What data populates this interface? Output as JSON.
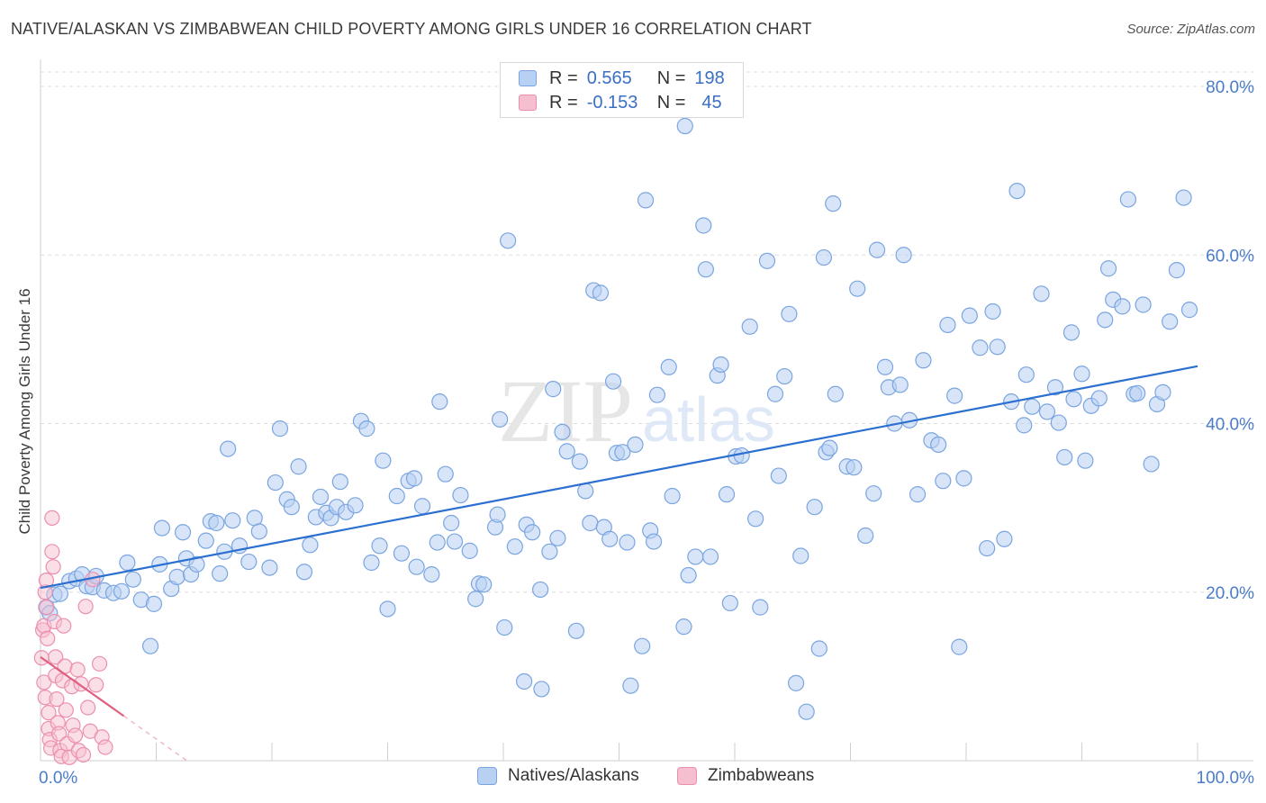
{
  "title": "NATIVE/ALASKAN VS ZIMBABWEAN CHILD POVERTY AMONG GIRLS UNDER 16 CORRELATION CHART",
  "source": "Source: ZipAtlas.com",
  "watermark": {
    "zip": "ZIP",
    "atlas": "atlas"
  },
  "legend_box": {
    "rows": [
      {
        "r_label": "R =",
        "r_value": "0.565",
        "n_label": "N =",
        "n_value": "198"
      },
      {
        "r_label": "R =",
        "r_value": "-0.153",
        "n_label": "N =",
        "n_value": "45"
      }
    ]
  },
  "bottom_legend": {
    "items": [
      "Natives/Alaskans",
      "Zimbabweans"
    ]
  },
  "colors": {
    "blue_fill": "#b8d0f2",
    "blue_stroke": "#7aa5e0",
    "blue_line": "#2b6fd0",
    "pink_fill": "#f6bfd0",
    "pink_stroke": "#ec8fae",
    "pink_line": "#e0607f",
    "tick_text": "#4a7cc9",
    "grid": "#dcdcdc"
  },
  "chart_data": {
    "type": "scatter",
    "xlabel": "",
    "ylabel": "Child Poverty Among Girls Under 16",
    "x_tick_labels": [
      "0.0%",
      "100.0%"
    ],
    "y_tick_labels": [
      "20.0%",
      "40.0%",
      "60.0%",
      "80.0%"
    ],
    "y_tick_values": [
      20,
      40,
      60,
      80
    ],
    "xlim": [
      0,
      100
    ],
    "ylim": [
      0,
      82
    ],
    "grid": true,
    "legend_placement": "top-center",
    "series": [
      {
        "name": "Natives/Alaskans",
        "trend": {
          "x": [
            0,
            100
          ],
          "y": [
            20.5,
            46.8
          ]
        },
        "points": [
          [
            0.5,
            18.2
          ],
          [
            0.8,
            17.5
          ],
          [
            1.2,
            19.7
          ],
          [
            1.7,
            19.8
          ],
          [
            2.5,
            21.3
          ],
          [
            3.1,
            21.6
          ],
          [
            3.6,
            22.1
          ],
          [
            4.0,
            20.7
          ],
          [
            4.5,
            20.6
          ],
          [
            4.8,
            21.9
          ],
          [
            5.5,
            20.2
          ],
          [
            6.3,
            19.9
          ],
          [
            7.0,
            20.1
          ],
          [
            7.5,
            23.5
          ],
          [
            8.0,
            21.5
          ],
          [
            8.7,
            19.1
          ],
          [
            9.5,
            13.6
          ],
          [
            9.8,
            18.6
          ],
          [
            10.3,
            23.3
          ],
          [
            10.5,
            27.6
          ],
          [
            11.3,
            20.4
          ],
          [
            11.8,
            21.8
          ],
          [
            12.3,
            27.1
          ],
          [
            12.6,
            24.0
          ],
          [
            13.0,
            22.1
          ],
          [
            13.5,
            23.3
          ],
          [
            14.3,
            26.1
          ],
          [
            14.7,
            28.4
          ],
          [
            15.2,
            28.2
          ],
          [
            15.5,
            22.2
          ],
          [
            15.9,
            24.8
          ],
          [
            16.2,
            37.0
          ],
          [
            16.6,
            28.5
          ],
          [
            17.2,
            25.5
          ],
          [
            18.0,
            23.6
          ],
          [
            18.5,
            28.8
          ],
          [
            18.9,
            27.2
          ],
          [
            19.8,
            22.9
          ],
          [
            20.3,
            33.0
          ],
          [
            20.7,
            39.4
          ],
          [
            21.3,
            31.0
          ],
          [
            21.7,
            30.1
          ],
          [
            22.3,
            34.9
          ],
          [
            22.8,
            22.4
          ],
          [
            23.3,
            25.6
          ],
          [
            23.8,
            28.9
          ],
          [
            24.2,
            31.3
          ],
          [
            24.7,
            29.4
          ],
          [
            25.1,
            28.8
          ],
          [
            25.6,
            30.1
          ],
          [
            25.9,
            33.1
          ],
          [
            26.4,
            29.5
          ],
          [
            27.2,
            30.3
          ],
          [
            27.7,
            40.3
          ],
          [
            28.2,
            39.4
          ],
          [
            28.6,
            23.5
          ],
          [
            29.3,
            25.5
          ],
          [
            29.6,
            35.6
          ],
          [
            30.0,
            18.0
          ],
          [
            30.8,
            31.4
          ],
          [
            31.2,
            24.6
          ],
          [
            31.8,
            33.2
          ],
          [
            32.3,
            33.5
          ],
          [
            32.5,
            23.0
          ],
          [
            33.0,
            30.2
          ],
          [
            33.8,
            22.1
          ],
          [
            34.3,
            25.9
          ],
          [
            34.5,
            42.6
          ],
          [
            35.0,
            34.0
          ],
          [
            35.5,
            28.2
          ],
          [
            35.8,
            26.0
          ],
          [
            36.3,
            31.5
          ],
          [
            37.1,
            24.9
          ],
          [
            37.6,
            19.2
          ],
          [
            37.9,
            21.0
          ],
          [
            38.3,
            20.9
          ],
          [
            39.3,
            27.7
          ],
          [
            39.5,
            29.2
          ],
          [
            39.7,
            40.5
          ],
          [
            40.1,
            15.8
          ],
          [
            41.0,
            25.4
          ],
          [
            41.8,
            9.4
          ],
          [
            42.0,
            28.0
          ],
          [
            42.5,
            27.1
          ],
          [
            43.2,
            20.3
          ],
          [
            43.3,
            8.5
          ],
          [
            44.0,
            24.8
          ],
          [
            44.3,
            44.1
          ],
          [
            44.7,
            26.4
          ],
          [
            45.1,
            39.0
          ],
          [
            45.5,
            36.7
          ],
          [
            46.3,
            15.4
          ],
          [
            46.6,
            35.5
          ],
          [
            47.1,
            32.0
          ],
          [
            47.5,
            28.2
          ],
          [
            47.8,
            55.8
          ],
          [
            48.4,
            55.5
          ],
          [
            48.7,
            27.7
          ],
          [
            49.2,
            26.3
          ],
          [
            49.5,
            45.0
          ],
          [
            49.8,
            36.5
          ],
          [
            50.3,
            36.6
          ],
          [
            50.7,
            25.9
          ],
          [
            51.0,
            8.9
          ],
          [
            51.4,
            37.5
          ],
          [
            52.0,
            13.6
          ],
          [
            52.3,
            66.5
          ],
          [
            52.7,
            27.3
          ],
          [
            53.0,
            26.0
          ],
          [
            53.3,
            43.4
          ],
          [
            54.3,
            46.7
          ],
          [
            54.6,
            31.4
          ],
          [
            55.6,
            15.9
          ],
          [
            56.0,
            22.0
          ],
          [
            56.6,
            24.2
          ],
          [
            57.3,
            63.5
          ],
          [
            57.5,
            58.3
          ],
          [
            57.9,
            24.2
          ],
          [
            58.5,
            45.7
          ],
          [
            58.8,
            47.0
          ],
          [
            59.3,
            31.6
          ],
          [
            59.6,
            18.7
          ],
          [
            60.1,
            36.1
          ],
          [
            60.6,
            36.2
          ],
          [
            61.3,
            51.5
          ],
          [
            61.8,
            28.7
          ],
          [
            62.2,
            18.2
          ],
          [
            62.8,
            59.3
          ],
          [
            63.5,
            43.5
          ],
          [
            63.8,
            33.8
          ],
          [
            64.3,
            45.6
          ],
          [
            64.7,
            53.0
          ],
          [
            65.3,
            9.2
          ],
          [
            65.7,
            24.3
          ],
          [
            66.2,
            5.8
          ],
          [
            66.9,
            30.1
          ],
          [
            67.3,
            13.3
          ],
          [
            67.7,
            59.7
          ],
          [
            67.9,
            36.6
          ],
          [
            68.2,
            37.1
          ],
          [
            68.5,
            66.1
          ],
          [
            68.7,
            43.5
          ],
          [
            69.7,
            34.9
          ],
          [
            70.3,
            34.8
          ],
          [
            70.6,
            56.0
          ],
          [
            71.3,
            26.7
          ],
          [
            72.0,
            31.7
          ],
          [
            72.3,
            60.6
          ],
          [
            73.0,
            46.7
          ],
          [
            73.3,
            44.3
          ],
          [
            73.8,
            40.0
          ],
          [
            74.3,
            44.6
          ],
          [
            74.6,
            60.0
          ],
          [
            75.1,
            40.4
          ],
          [
            75.8,
            31.6
          ],
          [
            76.3,
            47.5
          ],
          [
            77.0,
            38.0
          ],
          [
            77.6,
            37.5
          ],
          [
            78.0,
            33.2
          ],
          [
            78.4,
            51.7
          ],
          [
            79.0,
            43.3
          ],
          [
            79.4,
            13.5
          ],
          [
            79.8,
            33.5
          ],
          [
            80.3,
            52.8
          ],
          [
            81.2,
            49.0
          ],
          [
            81.8,
            25.2
          ],
          [
            82.3,
            53.3
          ],
          [
            82.7,
            49.1
          ],
          [
            83.3,
            26.3
          ],
          [
            83.9,
            42.6
          ],
          [
            84.4,
            67.6
          ],
          [
            85.0,
            39.8
          ],
          [
            85.2,
            45.8
          ],
          [
            85.7,
            42.0
          ],
          [
            86.5,
            55.4
          ],
          [
            87.0,
            41.4
          ],
          [
            87.7,
            44.3
          ],
          [
            88.0,
            40.1
          ],
          [
            88.5,
            36.0
          ],
          [
            89.1,
            50.8
          ],
          [
            89.3,
            42.9
          ],
          [
            90.0,
            45.9
          ],
          [
            90.3,
            35.6
          ],
          [
            90.8,
            42.1
          ],
          [
            91.5,
            43.0
          ],
          [
            92.0,
            52.3
          ],
          [
            92.3,
            58.4
          ],
          [
            92.7,
            54.7
          ],
          [
            93.5,
            53.9
          ],
          [
            94.0,
            66.6
          ],
          [
            94.5,
            43.5
          ],
          [
            94.8,
            43.6
          ],
          [
            95.3,
            54.1
          ],
          [
            96.0,
            35.2
          ],
          [
            96.5,
            42.3
          ],
          [
            97.0,
            43.7
          ],
          [
            97.6,
            52.1
          ],
          [
            98.2,
            58.2
          ],
          [
            98.8,
            66.8
          ],
          [
            99.3,
            53.5
          ],
          [
            55.7,
            75.3
          ],
          [
            40.4,
            61.7
          ]
        ]
      },
      {
        "name": "Zimbabweans",
        "trend": {
          "x": [
            0,
            7.2
          ],
          "y": [
            12.3,
            5.3
          ]
        },
        "points": [
          [
            0.1,
            12.2
          ],
          [
            0.2,
            15.5
          ],
          [
            0.3,
            16.0
          ],
          [
            0.3,
            9.3
          ],
          [
            0.4,
            7.5
          ],
          [
            0.4,
            20.0
          ],
          [
            0.5,
            21.4
          ],
          [
            0.5,
            18.2
          ],
          [
            0.6,
            14.5
          ],
          [
            0.7,
            5.7
          ],
          [
            0.7,
            3.8
          ],
          [
            0.8,
            2.5
          ],
          [
            0.9,
            1.5
          ],
          [
            1.0,
            28.8
          ],
          [
            1.0,
            24.8
          ],
          [
            1.1,
            23.0
          ],
          [
            1.2,
            16.5
          ],
          [
            1.3,
            12.3
          ],
          [
            1.3,
            10.1
          ],
          [
            1.4,
            7.3
          ],
          [
            1.5,
            4.5
          ],
          [
            1.6,
            3.2
          ],
          [
            1.7,
            1.2
          ],
          [
            1.8,
            0.5
          ],
          [
            1.9,
            9.5
          ],
          [
            2.0,
            16.0
          ],
          [
            2.1,
            11.2
          ],
          [
            2.2,
            6.0
          ],
          [
            2.3,
            2.0
          ],
          [
            2.5,
            0.4
          ],
          [
            2.7,
            8.8
          ],
          [
            2.8,
            4.2
          ],
          [
            3.0,
            3.0
          ],
          [
            3.2,
            10.8
          ],
          [
            3.3,
            1.2
          ],
          [
            3.5,
            9.1
          ],
          [
            3.7,
            0.7
          ],
          [
            3.9,
            18.3
          ],
          [
            4.1,
            6.3
          ],
          [
            4.3,
            3.5
          ],
          [
            4.5,
            21.5
          ],
          [
            4.8,
            9.0
          ],
          [
            5.1,
            11.5
          ],
          [
            5.3,
            2.8
          ],
          [
            5.6,
            1.6
          ]
        ]
      }
    ]
  }
}
